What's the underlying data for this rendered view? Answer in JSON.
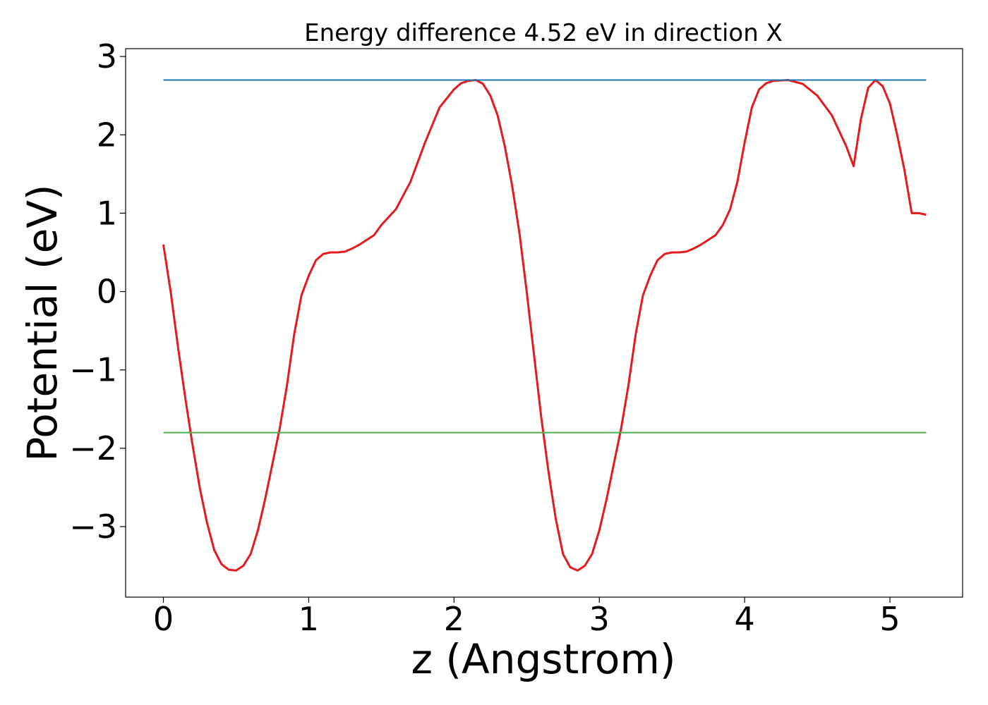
{
  "chart_data": {
    "type": "line",
    "title": "Energy difference 4.52 eV in direction X",
    "xlabel": "z (Angstrom)",
    "ylabel": "Potential (eV)",
    "xlim": [
      -0.26,
      5.5
    ],
    "ylim": [
      -3.9,
      3.1
    ],
    "xticks": [
      0,
      1,
      2,
      3,
      4,
      5
    ],
    "xtick_labels": [
      "0",
      "1",
      "2",
      "3",
      "4",
      "5"
    ],
    "yticks": [
      -3,
      -2,
      -1,
      0,
      1,
      2,
      3
    ],
    "ytick_labels": [
      "−3",
      "−2",
      "−1",
      "0",
      "1",
      "2",
      "3"
    ],
    "grid": false,
    "colors": {
      "potential": "#e41a1c",
      "upper": "#1f77b4",
      "lower": "#4daf4a"
    },
    "series": [
      {
        "kind": "curve",
        "x": [
          0.0,
          0.05,
          0.1,
          0.15,
          0.2,
          0.25,
          0.3,
          0.35,
          0.4,
          0.45,
          0.5,
          0.55,
          0.6,
          0.65,
          0.7,
          0.75,
          0.8,
          0.85,
          0.9,
          0.95,
          1.0,
          1.05,
          1.1,
          1.15,
          1.2,
          1.25,
          1.3,
          1.35,
          1.4,
          1.45,
          1.5,
          1.6,
          1.7,
          1.8,
          1.9,
          2.0,
          2.05,
          2.1,
          2.15,
          2.2,
          2.25,
          2.3,
          2.35,
          2.4,
          2.45,
          2.5,
          2.55,
          2.6,
          2.65,
          2.7,
          2.75,
          2.8,
          2.85,
          2.9,
          2.95,
          3.0,
          3.05,
          3.1,
          3.15,
          3.2,
          3.25,
          3.3,
          3.35,
          3.4,
          3.45,
          3.5,
          3.55,
          3.6,
          3.65,
          3.7,
          3.75,
          3.8,
          3.85,
          3.9,
          3.95,
          4.0,
          4.05,
          4.1,
          4.15,
          4.2,
          4.3,
          4.4,
          4.5,
          4.6,
          4.7,
          4.75,
          4.8,
          4.85,
          4.9,
          4.95,
          5.0,
          5.05,
          5.1,
          5.15,
          5.2,
          5.25
        ],
        "y": [
          0.6,
          0.0,
          -0.7,
          -1.35,
          -1.95,
          -2.5,
          -2.95,
          -3.3,
          -3.48,
          -3.55,
          -3.56,
          -3.5,
          -3.35,
          -3.05,
          -2.65,
          -2.2,
          -1.75,
          -1.2,
          -0.55,
          -0.05,
          0.2,
          0.4,
          0.48,
          0.5,
          0.5,
          0.51,
          0.55,
          0.6,
          0.66,
          0.72,
          0.85,
          1.05,
          1.4,
          1.9,
          2.35,
          2.58,
          2.66,
          2.69,
          2.7,
          2.65,
          2.5,
          2.25,
          1.85,
          1.35,
          0.75,
          0.0,
          -0.8,
          -1.6,
          -2.3,
          -2.9,
          -3.35,
          -3.52,
          -3.56,
          -3.5,
          -3.35,
          -3.05,
          -2.65,
          -2.2,
          -1.75,
          -1.2,
          -0.55,
          -0.05,
          0.2,
          0.4,
          0.48,
          0.5,
          0.5,
          0.51,
          0.55,
          0.6,
          0.66,
          0.72,
          0.85,
          1.05,
          1.4,
          1.9,
          2.35,
          2.58,
          2.66,
          2.69,
          2.7,
          2.65,
          2.5,
          2.25,
          1.85,
          1.6,
          2.2,
          2.6,
          2.7,
          2.62,
          2.4,
          2.0,
          1.55,
          1.0,
          1.0,
          0.98
        ]
      },
      {
        "kind": "hline",
        "y": 2.7,
        "x": [
          0,
          5.25
        ]
      },
      {
        "kind": "hline",
        "y": -1.8,
        "x": [
          0,
          5.25
        ]
      }
    ]
  }
}
